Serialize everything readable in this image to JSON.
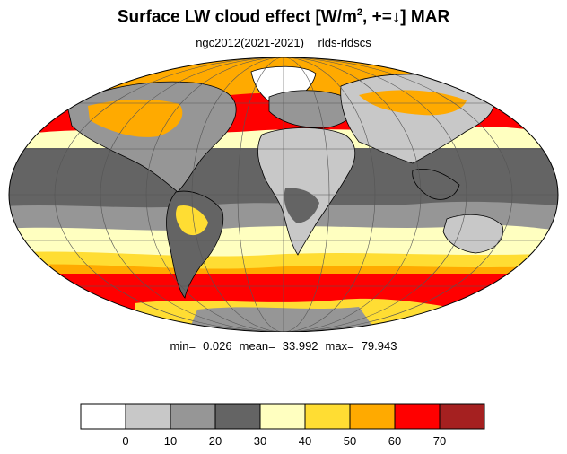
{
  "title": {
    "main": "Surface LW cloud effect [W/m",
    "sup": "2",
    "tail": ", +=↓]  MAR"
  },
  "subtitle": {
    "case": "ngc2012(2021-2021)",
    "variable": "rlds-rldscs"
  },
  "stats": {
    "min_label": "min=",
    "min": "0.026",
    "mean_label": "mean=",
    "mean": "33.992",
    "max_label": "max=",
    "max": "79.943"
  },
  "colorbar": {
    "levels": [
      "0",
      "10",
      "20",
      "30",
      "40",
      "50",
      "60",
      "70"
    ],
    "colors": [
      "#ffffff",
      "#c8c8c8",
      "#969696",
      "#646464",
      "#ffffc0",
      "#ffdd33",
      "#ffaa00",
      "#ff0000",
      "#a52020"
    ]
  },
  "colors": {
    "continent_outline": "#000000",
    "grid": "#555555"
  }
}
